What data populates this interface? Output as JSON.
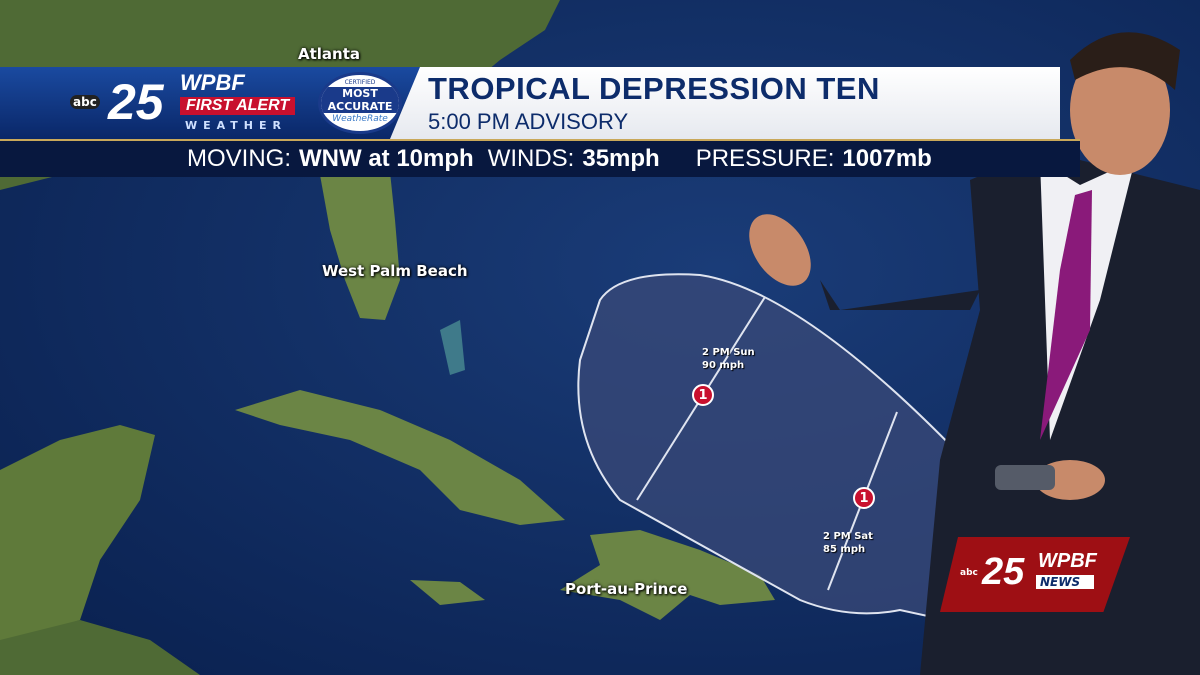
{
  "map": {
    "cities": [
      "Atlanta",
      "West Palm Beach",
      "Port-au-Prince"
    ],
    "forecast_points": [
      {
        "time": "2 PM Sun",
        "wind": "90 mph",
        "category": "1"
      },
      {
        "time": "2 PM Sat",
        "wind": "85 mph",
        "category": "1"
      }
    ],
    "colors": {
      "ocean": "#0c2a5a",
      "land": "#5f7a3a",
      "cone": "#3a4a78",
      "marker": "#c8102e"
    }
  },
  "banner": {
    "station": "WPBF",
    "channel": "25",
    "network": "abc",
    "brand_line1": "FIRST ALERT",
    "brand_line2": "WEATHER",
    "badge": [
      "CERTIFIED",
      "MOST",
      "ACCURATE",
      "WeatheRate"
    ],
    "title": "TROPICAL DEPRESSION TEN",
    "subtitle": "5:00 PM ADVISORY"
  },
  "stats": {
    "moving_label": "MOVING:",
    "moving_value": "WNW at 10mph",
    "winds_label": "WINDS:",
    "winds_value": "35mph",
    "pressure_label": "PRESSURE:",
    "pressure_value": "1007mb"
  },
  "news_logo": {
    "channel": "25",
    "station": "WPBF",
    "label": "NEWS",
    "network": "abc"
  }
}
